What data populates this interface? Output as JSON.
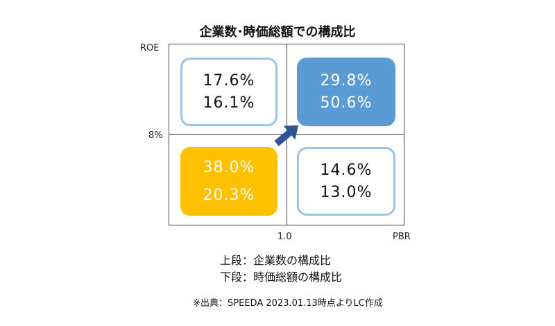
{
  "title": "企業数･時価総額での構成比",
  "axes": {
    "y_label": "ROE",
    "y_threshold": "8%",
    "x_threshold": "1.0",
    "x_label": "PBR"
  },
  "quadrants": {
    "top_left": {
      "upper": "17.6%",
      "lower": "16.1%"
    },
    "top_right": {
      "upper": "29.8%",
      "lower": "50.6%"
    },
    "bottom_left": {
      "upper": "38.0%",
      "lower": "20.3%"
    },
    "bottom_right": {
      "upper": "14.6%",
      "lower": "13.0%"
    }
  },
  "colors": {
    "outline_box_border": "#9dc3e6",
    "highlight_blue": "#5b9bd5",
    "highlight_gold": "#ffc000",
    "arrow": "#2f5597"
  },
  "icons": {
    "arrow": "arrow-up-right-icon"
  },
  "legend": {
    "upper": "上段：企業数の構成比",
    "lower": "下段：時価総額の構成比"
  },
  "source": "※出典：SPEEDA 2023.01.13時点よりLC作成"
}
